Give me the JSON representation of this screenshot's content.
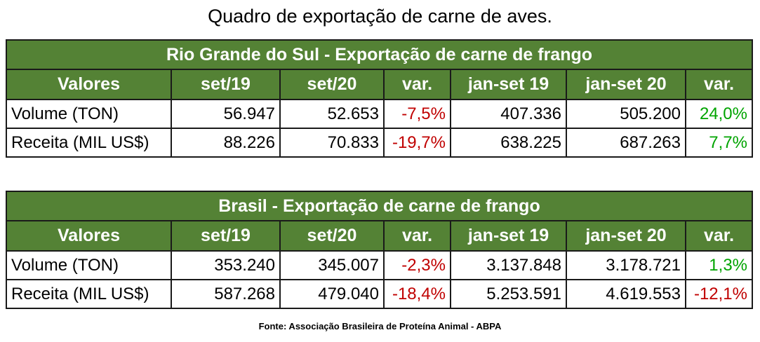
{
  "page_title": "Quadro de exportação de carne de aves.",
  "tables": [
    {
      "caption": "Rio Grande do Sul - Exportação de carne de frango",
      "headers": [
        "Valores",
        "set/19",
        "set/20",
        "var.",
        "jan-set 19",
        "jan-set 20",
        "var."
      ],
      "rows": [
        {
          "label": "Volume (TON)",
          "c1": "56.947",
          "c2": "52.653",
          "c3": "-7,5%",
          "c4": "407.336",
          "c5": "505.200",
          "c6": "24,0%"
        },
        {
          "label": "Receita (MIL US$)",
          "c1": "88.226",
          "c2": "70.833",
          "c3": "-19,7%",
          "c4": "638.225",
          "c5": "687.263",
          "c6": "7,7%"
        }
      ]
    },
    {
      "caption": "Brasil -  Exportação de carne de frango",
      "headers": [
        "Valores",
        "set/19",
        "set/20",
        "var.",
        "jan-set 19",
        "jan-set 20",
        "var."
      ],
      "rows": [
        {
          "label": "Volume (TON)",
          "c1": "353.240",
          "c2": "345.007",
          "c3": "-2,3%",
          "c4": "3.137.848",
          "c5": "3.178.721",
          "c6": "1,3%"
        },
        {
          "label": "Receita (MIL US$)",
          "c1": "587.268",
          "c2": "479.040",
          "c3": "-18,4%",
          "c4": "5.253.591",
          "c5": "4.619.553",
          "c6": "-12,1%"
        }
      ]
    }
  ],
  "source": "Fonte: Associação Brasileira de Proteína Animal - ABPA",
  "colors": {
    "header_bg": "#548235",
    "negative": "#c00000",
    "positive": "#00a400"
  }
}
